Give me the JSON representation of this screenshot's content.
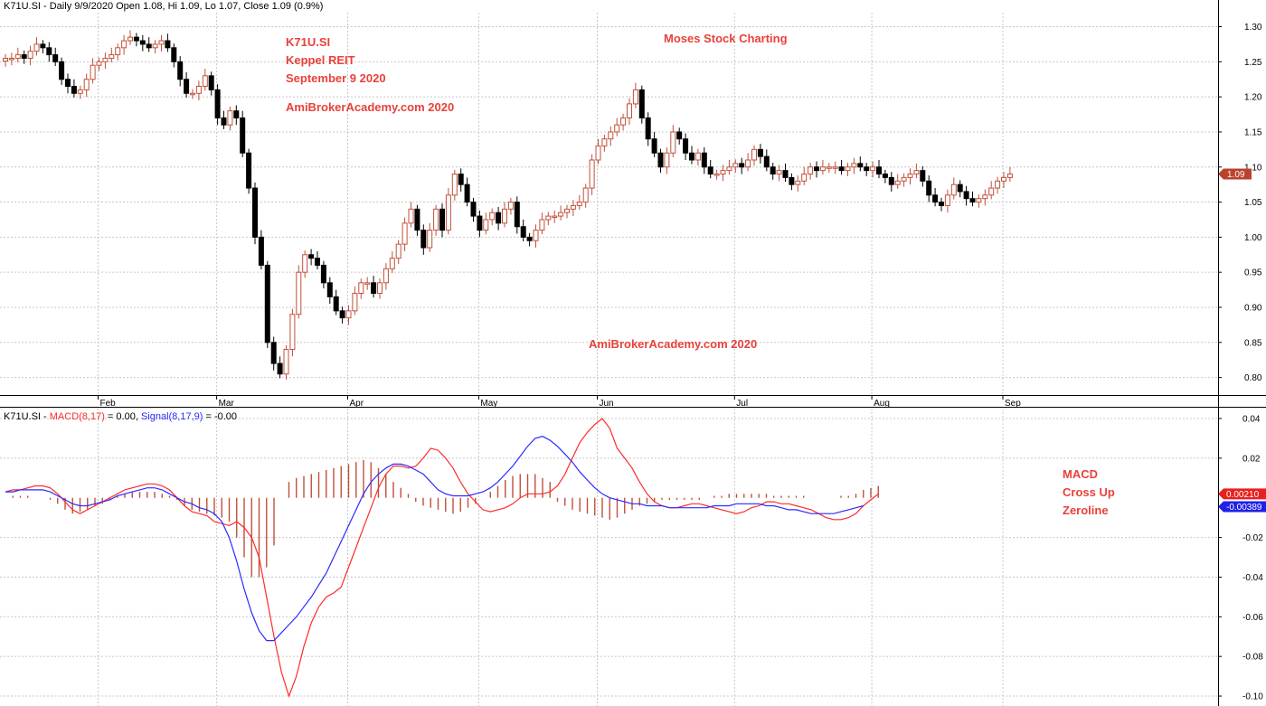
{
  "header": {
    "price_title": "K71U.SI - Daily 9/9/2020 Open 1.08, Hi 1.09, Lo 1.07, Close 1.09 (0.9%)",
    "macd_title_prefix": "K71U.SI - ",
    "macd_label": "MACD(8,17)",
    "macd_value": " = 0.00, ",
    "signal_label": "Signal(8,17,9)",
    "signal_value": " = -0.00"
  },
  "annotations": {
    "ticker": "K71U.SI",
    "name": "Keppel REIT",
    "date": "September 9 2020",
    "site_top": "AmiBrokerAcademy.com  2020",
    "brand": "Moses Stock Charting",
    "site_mid": "AmiBrokerAcademy.com 2020",
    "macd_note": [
      "MACD",
      "Cross Up",
      "Zeroline"
    ]
  },
  "colors": {
    "up": "#c0503a",
    "down": "#000000",
    "macd": "#ff2a2a",
    "signal": "#2a2aff",
    "histogram": "#c0503a",
    "annotation": "#e8413a",
    "grid": "#c8c8c8"
  },
  "chart_data": [
    {
      "type": "candlestick",
      "title": "K71U.SI - Daily 9/9/2020 Open 1.08, Hi 1.09, Lo 1.07, Close 1.09 (0.9%)",
      "ylim": [
        0.775,
        1.32
      ],
      "yticks": [
        "1.30",
        "1.25",
        "1.20",
        "1.15",
        "1.10",
        "1.05",
        "1.00",
        "0.95",
        "0.90",
        "0.85",
        "0.80"
      ],
      "month_labels": [
        {
          "label": "Feb",
          "index": 15
        },
        {
          "label": "Mar",
          "index": 34
        },
        {
          "label": "Apr",
          "index": 55
        },
        {
          "label": "May",
          "index": 76
        },
        {
          "label": "Jun",
          "index": 95
        },
        {
          "label": "Jul",
          "index": 117
        },
        {
          "label": "Aug",
          "index": 139
        },
        {
          "label": "Sep",
          "index": 160
        }
      ],
      "last_close_tag": "1.09",
      "closes": [
        1.255,
        1.255,
        1.26,
        1.255,
        1.265,
        1.275,
        1.27,
        1.26,
        1.25,
        1.225,
        1.215,
        1.205,
        1.21,
        1.225,
        1.245,
        1.25,
        1.255,
        1.26,
        1.27,
        1.28,
        1.285,
        1.28,
        1.275,
        1.27,
        1.275,
        1.28,
        1.27,
        1.25,
        1.225,
        1.205,
        1.205,
        1.215,
        1.23,
        1.21,
        1.17,
        1.16,
        1.18,
        1.17,
        1.12,
        1.07,
        1.0,
        0.96,
        0.85,
        0.82,
        0.805,
        0.84,
        0.89,
        0.95,
        0.975,
        0.97,
        0.96,
        0.935,
        0.915,
        0.895,
        0.885,
        0.895,
        0.92,
        0.935,
        0.935,
        0.92,
        0.935,
        0.955,
        0.97,
        0.99,
        1.02,
        1.04,
        1.01,
        0.985,
        1.01,
        1.04,
        1.01,
        1.06,
        1.09,
        1.075,
        1.05,
        1.03,
        1.01,
        1.025,
        1.035,
        1.02,
        1.04,
        1.05,
        1.015,
        1.0,
        0.995,
        1.01,
        1.025,
        1.03,
        1.03,
        1.035,
        1.04,
        1.045,
        1.05,
        1.07,
        1.11,
        1.13,
        1.14,
        1.15,
        1.16,
        1.17,
        1.19,
        1.21,
        1.17,
        1.14,
        1.12,
        1.1,
        1.12,
        1.15,
        1.14,
        1.12,
        1.11,
        1.12,
        1.1,
        1.09,
        1.09,
        1.095,
        1.1,
        1.105,
        1.1,
        1.11,
        1.125,
        1.115,
        1.1,
        1.09,
        1.095,
        1.085,
        1.075,
        1.08,
        1.09,
        1.1,
        1.095,
        1.1,
        1.1,
        1.1,
        1.095,
        1.1,
        1.105,
        1.1,
        1.095,
        1.1,
        1.09,
        1.085,
        1.075,
        1.08,
        1.085,
        1.09,
        1.095,
        1.08,
        1.06,
        1.05,
        1.045,
        1.06,
        1.075,
        1.065,
        1.055,
        1.05,
        1.055,
        1.06,
        1.07,
        1.08,
        1.085,
        1.09
      ]
    },
    {
      "type": "line",
      "title": "K71U.SI - MACD(8,17) = 0.00, Signal(8,17,9) = -0.00",
      "ylim": [
        -0.105,
        0.045
      ],
      "yticks": [
        "0.04",
        "0.02",
        "-0.02",
        "-0.04",
        "-0.06",
        "-0.08",
        "-0.10"
      ],
      "series": [
        {
          "name": "MACD(8,17)",
          "values": [
            0.003,
            0.004,
            0.004,
            0.005,
            0.006,
            0.006,
            0.005,
            0.002,
            -0.002,
            -0.006,
            -0.008,
            -0.006,
            -0.004,
            -0.002,
            0.0,
            0.002,
            0.004,
            0.005,
            0.006,
            0.007,
            0.007,
            0.006,
            0.004,
            0.0,
            -0.004,
            -0.007,
            -0.008,
            -0.009,
            -0.012,
            -0.013,
            -0.014,
            -0.012,
            -0.015,
            -0.02,
            -0.03,
            -0.05,
            -0.07,
            -0.088,
            -0.1,
            -0.09,
            -0.075,
            -0.063,
            -0.055,
            -0.05,
            -0.048,
            -0.045,
            -0.035,
            -0.025,
            -0.015,
            -0.005,
            0.005,
            0.012,
            0.016,
            0.016,
            0.015,
            0.016,
            0.02,
            0.025,
            0.024,
            0.02,
            0.015,
            0.008,
            0.002,
            -0.002,
            -0.006,
            -0.007,
            -0.006,
            -0.005,
            -0.003,
            0.0,
            0.002,
            0.002,
            0.002,
            0.003,
            0.006,
            0.012,
            0.02,
            0.028,
            0.033,
            0.037,
            0.04,
            0.035,
            0.025,
            0.02,
            0.015,
            0.008,
            0.002,
            -0.002,
            -0.004,
            -0.005,
            -0.005,
            -0.004,
            -0.003,
            -0.003,
            -0.004,
            -0.005,
            -0.006,
            -0.007,
            -0.008,
            -0.007,
            -0.005,
            -0.004,
            -0.002,
            -0.002,
            -0.003,
            -0.003,
            -0.004,
            -0.005,
            -0.006,
            -0.008,
            -0.01,
            -0.011,
            -0.011,
            -0.01,
            -0.008,
            -0.004,
            -0.001,
            0.002
          ]
        },
        {
          "name": "Signal(8,17,9)",
          "values": [
            0.003,
            0.003,
            0.004,
            0.004,
            0.004,
            0.004,
            0.003,
            0.001,
            -0.001,
            -0.003,
            -0.004,
            -0.004,
            -0.003,
            -0.002,
            -0.001,
            0.001,
            0.002,
            0.003,
            0.004,
            0.005,
            0.005,
            0.004,
            0.002,
            0.0,
            -0.002,
            -0.003,
            -0.005,
            -0.006,
            -0.008,
            -0.012,
            -0.02,
            -0.032,
            -0.046,
            -0.058,
            -0.067,
            -0.072,
            -0.072,
            -0.068,
            -0.064,
            -0.06,
            -0.055,
            -0.05,
            -0.044,
            -0.038,
            -0.03,
            -0.022,
            -0.014,
            -0.006,
            0.002,
            0.008,
            0.012,
            0.015,
            0.017,
            0.017,
            0.016,
            0.014,
            0.012,
            0.008,
            0.004,
            0.002,
            0.001,
            0.001,
            0.001,
            0.002,
            0.003,
            0.005,
            0.008,
            0.012,
            0.016,
            0.021,
            0.026,
            0.03,
            0.031,
            0.029,
            0.026,
            0.022,
            0.018,
            0.013,
            0.009,
            0.005,
            0.002,
            0.0,
            -0.001,
            -0.002,
            -0.003,
            -0.003,
            -0.004,
            -0.004,
            -0.004,
            -0.005,
            -0.005,
            -0.005,
            -0.005,
            -0.005,
            -0.005,
            -0.004,
            -0.004,
            -0.004,
            -0.003,
            -0.003,
            -0.003,
            -0.003,
            -0.004,
            -0.004,
            -0.005,
            -0.006,
            -0.006,
            -0.007,
            -0.008,
            -0.008,
            -0.008,
            -0.008,
            -0.007,
            -0.006,
            -0.005,
            -0.004
          ]
        }
      ],
      "histogram": [
        0.0,
        0.001,
        0.001,
        0.001,
        0.0,
        0.0,
        -0.001,
        -0.003,
        -0.006,
        -0.008,
        -0.007,
        -0.006,
        -0.004,
        -0.003,
        -0.001,
        0.001,
        0.002,
        0.003,
        0.003,
        0.003,
        0.003,
        0.002,
        0.001,
        -0.001,
        -0.004,
        -0.006,
        -0.007,
        -0.008,
        -0.009,
        -0.01,
        -0.012,
        -0.02,
        -0.03,
        -0.04,
        -0.04,
        -0.035,
        -0.024,
        0.0,
        0.008,
        0.01,
        0.011,
        0.012,
        0.013,
        0.014,
        0.015,
        0.016,
        0.017,
        0.018,
        0.019,
        0.018,
        0.015,
        0.012,
        0.008,
        0.005,
        0.002,
        -0.002,
        -0.004,
        -0.005,
        -0.006,
        -0.007,
        -0.008,
        -0.007,
        -0.005,
        -0.003,
        0.0,
        0.003,
        0.006,
        0.009,
        0.011,
        0.012,
        0.012,
        0.012,
        0.01,
        0.008,
        -0.002,
        -0.004,
        -0.006,
        -0.007,
        -0.008,
        -0.009,
        -0.01,
        -0.011,
        -0.01,
        -0.008,
        -0.006,
        -0.004,
        -0.003,
        -0.002,
        -0.001,
        -0.001,
        -0.001,
        -0.001,
        -0.001,
        -0.001,
        0.0,
        0.001,
        0.001,
        0.002,
        0.002,
        0.002,
        0.002,
        0.002,
        0.002,
        0.001,
        0.001,
        0.001,
        0.001,
        0.001,
        0.0,
        0.0,
        0.0,
        0.0,
        0.001,
        0.001,
        0.002,
        0.004,
        0.005,
        0.006
      ],
      "last_value_tags": [
        "0.00210",
        "-0.00389"
      ]
    }
  ]
}
